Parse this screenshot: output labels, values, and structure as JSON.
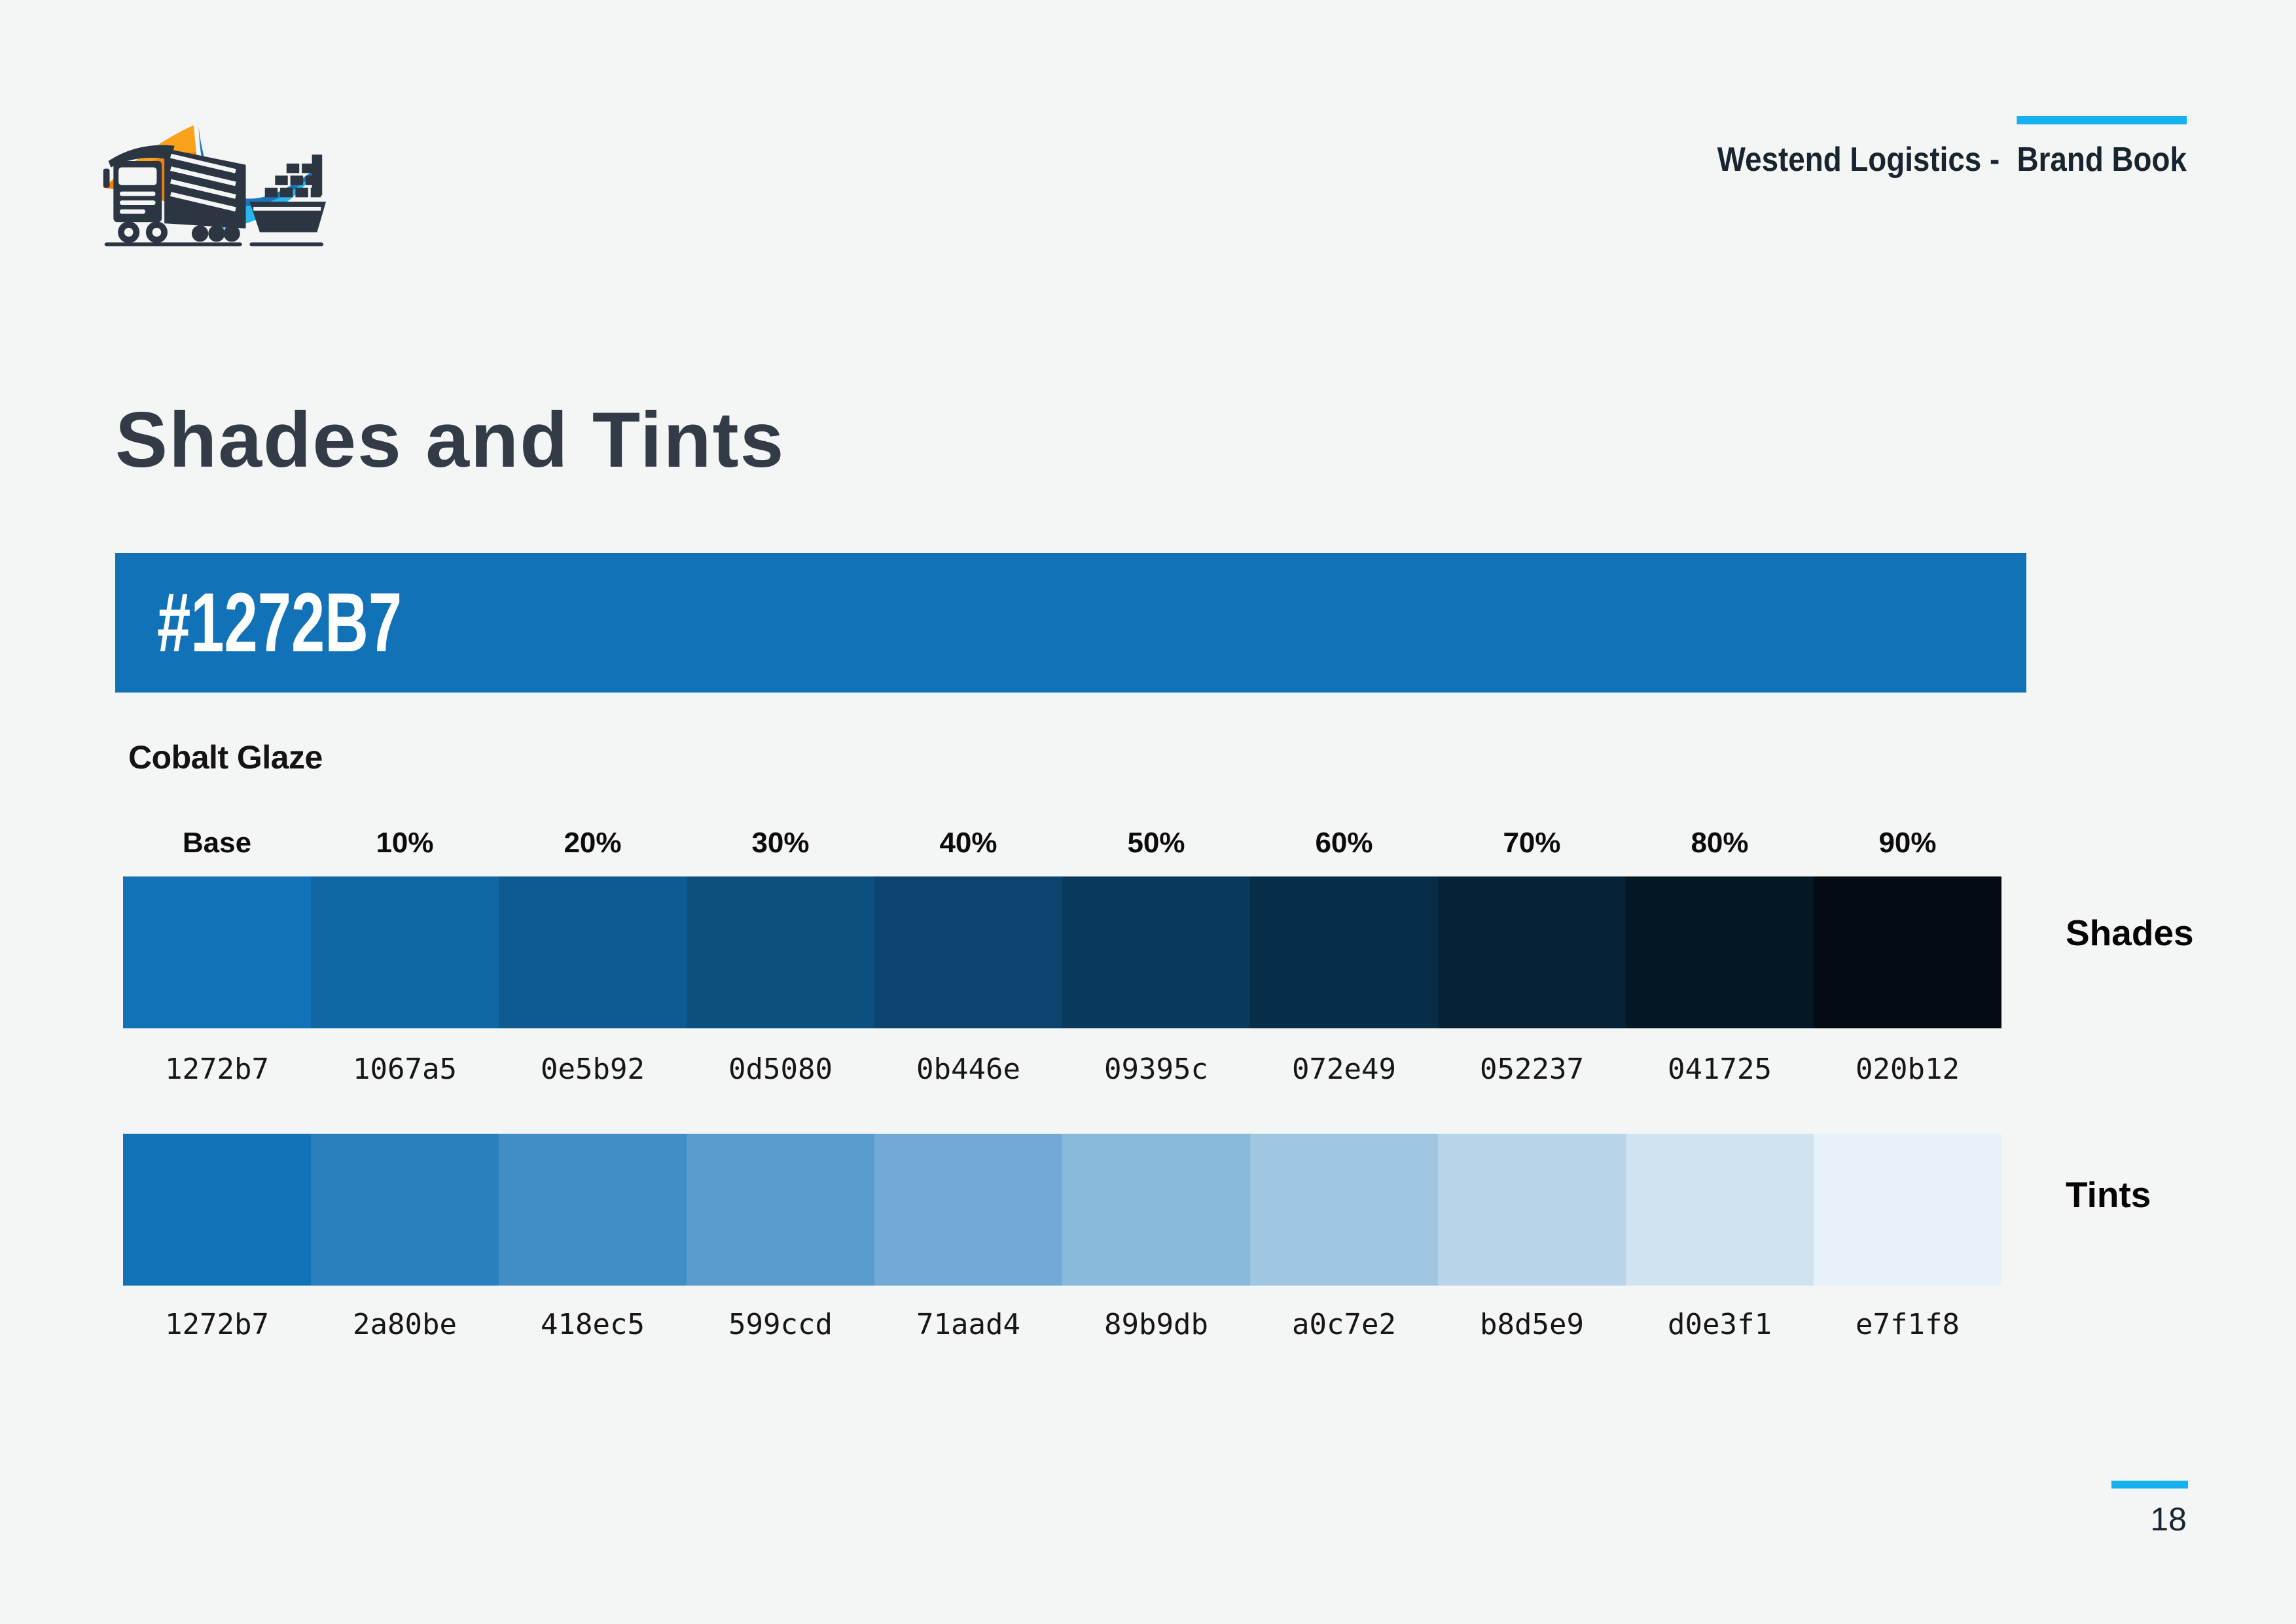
{
  "header": {
    "company": "Westend Logistics -",
    "book_title": "Brand Book"
  },
  "page": {
    "title": "Shades and Tints",
    "number": "18"
  },
  "base_color": {
    "label": "#1272B7",
    "hex": "#1272b7",
    "name": "Cobalt Glaze"
  },
  "percent_labels": [
    "Base",
    "10%",
    "20%",
    "30%",
    "40%",
    "50%",
    "60%",
    "70%",
    "80%",
    "90%"
  ],
  "shades": {
    "label": "Shades",
    "hex_values": [
      "1272b7",
      "1067a5",
      "0e5b92",
      "0d5080",
      "0b446e",
      "09395c",
      "072e49",
      "052237",
      "041725",
      "020b12"
    ]
  },
  "tints": {
    "label": "Tints",
    "hex_values": [
      "1272b7",
      "2a80be",
      "418ec5",
      "599ccd",
      "71aad4",
      "89b9db",
      "a0c7e2",
      "b8d5e9",
      "d0e3f1",
      "e7f1f8"
    ]
  },
  "colors": {
    "background": "#f4f5f5",
    "accent_cyan": "#16b2ef",
    "dark_text": "#18242e",
    "title_color": "#323b46",
    "primary_blue": "#1272b7",
    "logo_dark": "#2c3642",
    "logo_orange": "#ef8214",
    "logo_orange_light": "#f9a21c",
    "logo_blue": "#1a74b8",
    "logo_cyan": "#29b5ef"
  }
}
